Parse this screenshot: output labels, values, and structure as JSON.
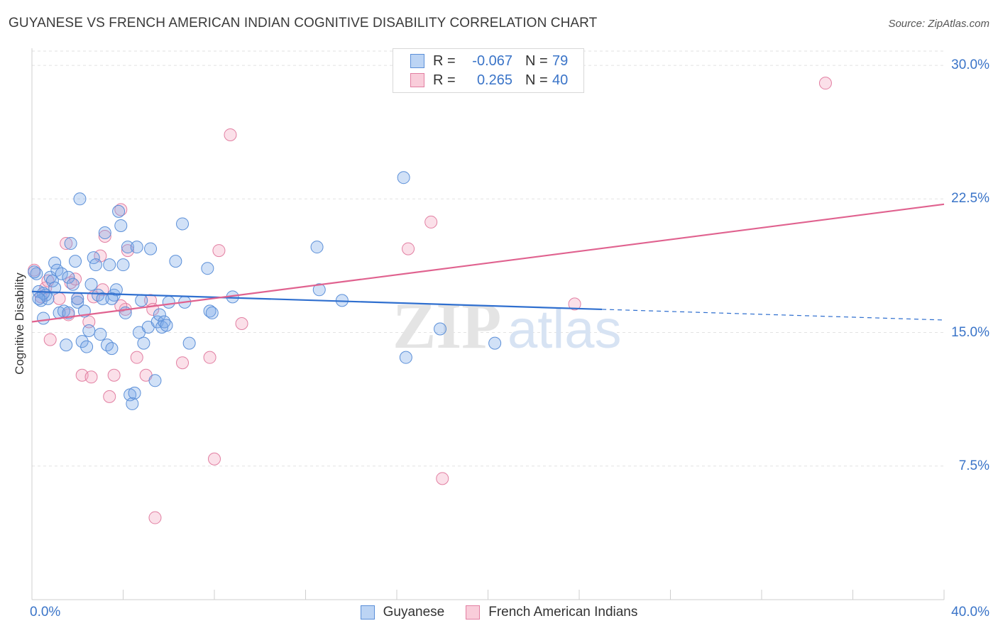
{
  "title": "GUYANESE VS FRENCH AMERICAN INDIAN COGNITIVE DISABILITY CORRELATION CHART",
  "source": "Source: ZipAtlas.com",
  "watermark": {
    "zip": "ZIP",
    "atlas": "atlas"
  },
  "legend": {
    "r_label": "R =",
    "n_label": "N =",
    "items": [
      {
        "r": "-0.067",
        "n": "79"
      },
      {
        "r": "0.265",
        "n": "40"
      }
    ]
  },
  "chart_data": {
    "type": "scatter",
    "title": "GUYANESE VS FRENCH AMERICAN INDIAN COGNITIVE DISABILITY CORRELATION CHART",
    "xlabel": "",
    "ylabel": "Cognitive Disability",
    "xlim": [
      0,
      40
    ],
    "ylim": [
      0,
      30.8
    ],
    "x_tick_labels": [
      "0.0%",
      "40.0%"
    ],
    "y_ticks": [
      7.5,
      15.0,
      22.5,
      30.0
    ],
    "y_tick_labels": [
      "7.5%",
      "15.0%",
      "22.5%",
      "30.0%"
    ],
    "grid": "horizontal dashed",
    "legend_position": "top-center",
    "series": [
      {
        "name": "Guyanese",
        "color": "#7aaae8",
        "edge": "#5b8fd8",
        "trend": {
          "x0": 0,
          "y0": 17.3,
          "x1": 25,
          "y1": 16.3,
          "dashed_to_x": 40,
          "dashed_to_y": 15.7,
          "color": "#2f6fcf"
        },
        "points": [
          [
            0.2,
            18.3
          ],
          [
            0.3,
            17.3
          ],
          [
            0.4,
            16.8
          ],
          [
            0.5,
            15.8
          ],
          [
            0.6,
            17.1
          ],
          [
            0.7,
            16.9
          ],
          [
            0.8,
            18.1
          ],
          [
            0.9,
            17.9
          ],
          [
            1.0,
            18.9
          ],
          [
            1.1,
            18.5
          ],
          [
            1.2,
            16.1
          ],
          [
            1.3,
            18.3
          ],
          [
            1.4,
            16.2
          ],
          [
            1.5,
            14.3
          ],
          [
            1.6,
            18.1
          ],
          [
            1.7,
            20.0
          ],
          [
            1.8,
            17.7
          ],
          [
            1.9,
            19.0
          ],
          [
            2.0,
            16.7
          ],
          [
            2.1,
            22.5
          ],
          [
            2.2,
            14.5
          ],
          [
            2.3,
            16.2
          ],
          [
            2.4,
            14.2
          ],
          [
            2.5,
            15.1
          ],
          [
            2.6,
            17.7
          ],
          [
            2.7,
            19.2
          ],
          [
            2.8,
            18.8
          ],
          [
            2.9,
            17.1
          ],
          [
            3.0,
            14.9
          ],
          [
            3.1,
            16.9
          ],
          [
            3.2,
            20.6
          ],
          [
            3.3,
            14.3
          ],
          [
            3.4,
            18.8
          ],
          [
            3.5,
            14.1
          ],
          [
            3.6,
            17.1
          ],
          [
            3.7,
            17.4
          ],
          [
            3.8,
            21.8
          ],
          [
            3.9,
            21.0
          ],
          [
            4.0,
            18.8
          ],
          [
            4.1,
            16.1
          ],
          [
            4.2,
            19.8
          ],
          [
            4.3,
            11.5
          ],
          [
            4.4,
            11.0
          ],
          [
            4.5,
            11.6
          ],
          [
            4.6,
            19.8
          ],
          [
            4.7,
            15.0
          ],
          [
            4.8,
            16.8
          ],
          [
            4.9,
            14.4
          ],
          [
            5.1,
            15.3
          ],
          [
            5.2,
            19.7
          ],
          [
            5.4,
            12.3
          ],
          [
            5.5,
            15.6
          ],
          [
            5.6,
            16.0
          ],
          [
            5.7,
            15.3
          ],
          [
            5.8,
            15.6
          ],
          [
            5.9,
            15.4
          ],
          [
            6.0,
            16.7
          ],
          [
            6.3,
            19.0
          ],
          [
            6.6,
            21.1
          ],
          [
            6.7,
            16.7
          ],
          [
            6.9,
            14.4
          ],
          [
            7.7,
            18.6
          ],
          [
            7.8,
            16.2
          ],
          [
            7.9,
            16.1
          ],
          [
            8.8,
            17.0
          ],
          [
            12.5,
            19.8
          ],
          [
            12.6,
            17.4
          ],
          [
            13.6,
            16.8
          ],
          [
            16.3,
            23.7
          ],
          [
            16.4,
            13.6
          ],
          [
            17.9,
            15.2
          ],
          [
            20.3,
            14.4
          ],
          [
            0.1,
            18.4
          ],
          [
            0.5,
            17.2
          ],
          [
            2.0,
            16.9
          ],
          [
            3.5,
            16.9
          ],
          [
            1.0,
            17.5
          ],
          [
            0.3,
            16.9
          ],
          [
            1.6,
            16.1
          ]
        ]
      },
      {
        "name": "French American Indians",
        "color": "#f4a6c0",
        "edge": "#e27fa2",
        "trend": {
          "x0": 0,
          "y0": 15.6,
          "x1": 40,
          "y1": 22.2,
          "color": "#e0628f"
        },
        "points": [
          [
            0.1,
            18.5
          ],
          [
            0.6,
            17.5
          ],
          [
            0.7,
            17.9
          ],
          [
            0.8,
            14.6
          ],
          [
            1.2,
            16.9
          ],
          [
            1.5,
            20.0
          ],
          [
            1.6,
            16.0
          ],
          [
            1.7,
            17.8
          ],
          [
            1.9,
            18.0
          ],
          [
            2.0,
            16.9
          ],
          [
            2.2,
            12.6
          ],
          [
            2.5,
            15.6
          ],
          [
            2.6,
            12.5
          ],
          [
            2.7,
            17.0
          ],
          [
            3.0,
            19.3
          ],
          [
            3.1,
            17.4
          ],
          [
            3.2,
            20.4
          ],
          [
            3.4,
            11.4
          ],
          [
            3.6,
            12.6
          ],
          [
            3.9,
            21.9
          ],
          [
            4.1,
            16.3
          ],
          [
            4.2,
            19.6
          ],
          [
            4.6,
            13.6
          ],
          [
            5.0,
            12.6
          ],
          [
            5.2,
            16.8
          ],
          [
            5.3,
            16.3
          ],
          [
            5.4,
            4.6
          ],
          [
            6.6,
            13.3
          ],
          [
            7.8,
            13.6
          ],
          [
            8.0,
            7.9
          ],
          [
            8.2,
            19.6
          ],
          [
            8.7,
            26.1
          ],
          [
            9.2,
            15.5
          ],
          [
            16.5,
            19.7
          ],
          [
            17.5,
            21.2
          ],
          [
            18.0,
            6.8
          ],
          [
            23.8,
            16.6
          ],
          [
            34.8,
            29.0
          ],
          [
            0.4,
            17.0
          ],
          [
            3.9,
            16.5
          ]
        ]
      }
    ]
  }
}
